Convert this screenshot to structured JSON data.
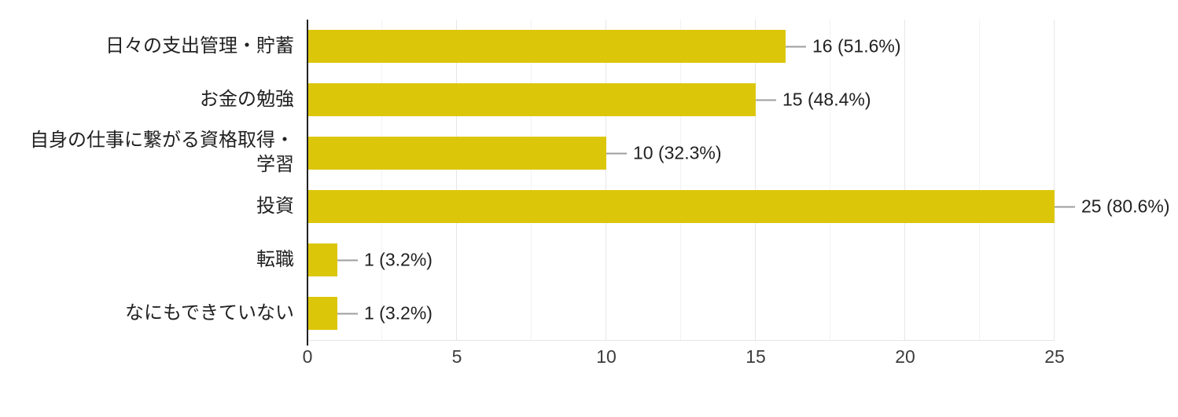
{
  "chart_data": {
    "type": "bar",
    "orientation": "horizontal",
    "title": "",
    "xlabel": "",
    "ylabel": "",
    "categories": [
      "日々の支出管理・貯蓄",
      "お金の勉強",
      "自身の仕事に繋がる資格取得・\n学習",
      "投資",
      "転職",
      "なにもできていない"
    ],
    "values": [
      16,
      15,
      10,
      25,
      1,
      1
    ],
    "value_labels": [
      "16 (51.6%)",
      "15 (48.4%)",
      "10 (32.3%)",
      "25 (80.6%)",
      "1 (3.2%)",
      "1 (3.2%)"
    ],
    "x_ticks": [
      0,
      5,
      10,
      15,
      20,
      25
    ],
    "xlim": [
      0,
      25
    ],
    "gridlines": {
      "major": [
        5,
        10,
        15,
        20,
        25
      ],
      "minor": [
        2.5,
        7.5,
        12.5,
        17.5,
        22.5
      ]
    },
    "legend": "none",
    "colors": {
      "bar_color": "#dcc60a",
      "axis_color": "#212121",
      "grid_major": "#e6e6e6",
      "grid_minor": "#f2f2f2",
      "connector_color": "#9e9e9e",
      "label_color": "#212121",
      "tick_color": "#3c3c3c",
      "background": "#ffffff"
    }
  }
}
